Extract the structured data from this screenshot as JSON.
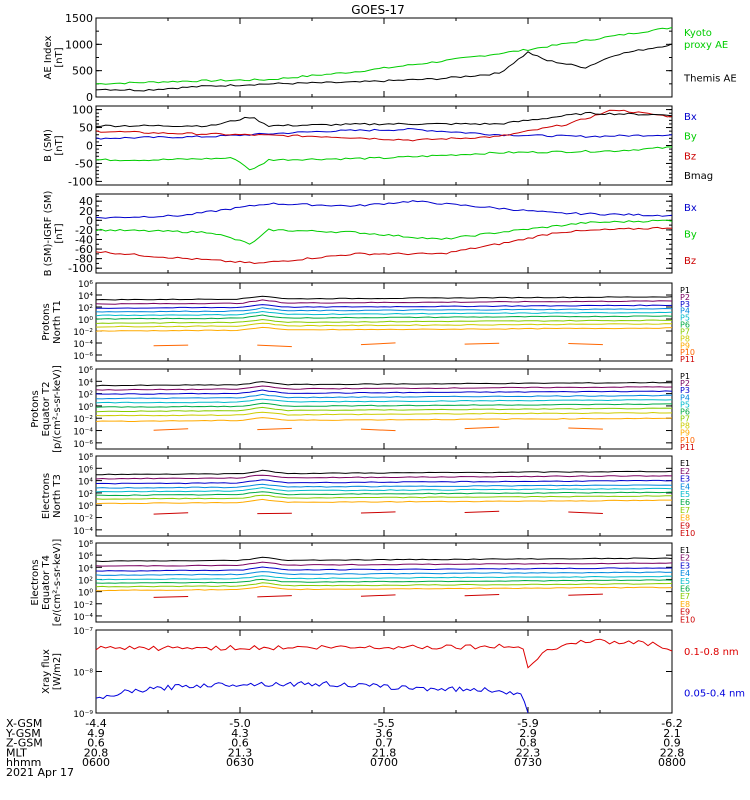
{
  "chart_data": {
    "type": "line",
    "title": "GOES-17",
    "date": "2021 Apr 17",
    "x_range": [
      "0600",
      "0800"
    ],
    "panels": [
      {
        "id": "ae",
        "ylabel": [
          "AE Index",
          "[nT]"
        ],
        "scale": "linear",
        "ylim": [
          0,
          1500
        ],
        "ticks": [
          0,
          500,
          1000,
          1500
        ],
        "tick_labels": [
          "0",
          "500",
          "1000",
          "1500"
        ],
        "minor": 2,
        "series": [
          {
            "name": "Kyoto proxy AE",
            "label": [
              "Kyoto",
              "proxy AE"
            ],
            "color": "#00cc00",
            "t": [
              0,
              0.15,
              0.3,
              0.45,
              0.6,
              0.75,
              0.9,
              1.0
            ],
            "v": [
              250,
              300,
              330,
              480,
              680,
              900,
              1160,
              1320
            ]
          },
          {
            "name": "Themis AE",
            "label": [
              "Themis AE"
            ],
            "color": "#000000",
            "t": [
              0,
              0.08,
              0.18,
              0.3,
              0.45,
              0.6,
              0.7,
              0.75,
              0.78,
              0.85,
              0.9,
              1.0
            ],
            "v": [
              150,
              130,
              200,
              250,
              280,
              350,
              450,
              850,
              700,
              560,
              800,
              1000
            ]
          }
        ]
      },
      {
        "id": "bsm",
        "ylabel": [
          "B (SM)",
          "[nT]"
        ],
        "scale": "linear",
        "ylim": [
          -110,
          110
        ],
        "ticks": [
          -100,
          -50,
          0,
          50,
          100
        ],
        "tick_labels": [
          "-100",
          "-50",
          "0",
          "50",
          "100"
        ],
        "minor": 5,
        "series": [
          {
            "name": "Bx",
            "label": [
              "Bx"
            ],
            "color": "#0000cc",
            "t": [
              0,
              0.2,
              0.4,
              0.55,
              0.7,
              0.85,
              1.0
            ],
            "v": [
              20,
              25,
              40,
              45,
              30,
              25,
              30
            ]
          },
          {
            "name": "By",
            "label": [
              "By"
            ],
            "color": "#00cc00",
            "t": [
              0,
              0.1,
              0.24,
              0.27,
              0.3,
              0.5,
              0.7,
              0.9,
              1.0
            ],
            "v": [
              -40,
              -40,
              -35,
              -70,
              -40,
              -35,
              -20,
              -15,
              -5
            ]
          },
          {
            "name": "Bz",
            "label": [
              "Bz"
            ],
            "color": "#cc0000",
            "t": [
              0,
              0.1,
              0.25,
              0.4,
              0.55,
              0.7,
              0.82,
              0.9,
              1.0
            ],
            "v": [
              40,
              35,
              30,
              25,
              15,
              25,
              60,
              100,
              80
            ]
          },
          {
            "name": "Bmag",
            "label": [
              "Bmag"
            ],
            "color": "#000000",
            "t": [
              0,
              0.2,
              0.27,
              0.3,
              0.5,
              0.7,
              0.85,
              1.0
            ],
            "v": [
              55,
              55,
              80,
              55,
              60,
              60,
              90,
              85
            ]
          }
        ]
      },
      {
        "id": "bigrf",
        "ylabel": [
          "B (SM)-IGRF (SM)",
          "[nT]"
        ],
        "scale": "linear",
        "ylim": [
          -110,
          55
        ],
        "ticks": [
          -100,
          -80,
          -60,
          -40,
          -20,
          0,
          20,
          40
        ],
        "tick_labels": [
          "-100",
          "-80",
          "-60",
          "-40",
          "-20",
          "0",
          "20",
          "40"
        ],
        "minor": 2,
        "series": [
          {
            "name": "Bx",
            "label": [
              "Bx"
            ],
            "color": "#0000cc",
            "t": [
              0,
              0.15,
              0.3,
              0.45,
              0.55,
              0.7,
              0.8,
              1.0
            ],
            "v": [
              5,
              10,
              35,
              30,
              40,
              25,
              15,
              10
            ]
          },
          {
            "name": "By",
            "label": [
              "By"
            ],
            "color": "#00cc00",
            "t": [
              0,
              0.2,
              0.27,
              0.3,
              0.45,
              0.6,
              0.7,
              0.85,
              1.0
            ],
            "v": [
              -20,
              -25,
              -50,
              -20,
              -25,
              -40,
              -25,
              -5,
              0
            ]
          },
          {
            "name": "Bz",
            "label": [
              "Bz"
            ],
            "color": "#cc0000",
            "t": [
              0,
              0.1,
              0.28,
              0.45,
              0.6,
              0.72,
              0.8,
              0.88,
              1.0
            ],
            "v": [
              -65,
              -75,
              -90,
              -70,
              -70,
              -45,
              -25,
              -20,
              -15
            ]
          }
        ]
      },
      {
        "id": "pn",
        "ylabel": [
          "Protons",
          "North T1"
        ],
        "scale": "log",
        "ylim": [
          -7,
          6
        ],
        "ticks": [
          -6,
          -4,
          -2,
          0,
          2,
          4,
          6
        ],
        "tick_labels": [
          "10⁻⁶",
          "10⁻⁴",
          "10⁻²",
          "10⁰",
          "10²",
          "10⁴",
          "10⁶"
        ],
        "channels": [
          {
            "name": "P1",
            "color": "#000000",
            "v": 3.2
          },
          {
            "name": "P2",
            "color": "#7a0060",
            "v": 2.5
          },
          {
            "name": "P3",
            "color": "#0000cc",
            "v": 1.8
          },
          {
            "name": "P4",
            "color": "#0088dd",
            "v": 1.2
          },
          {
            "name": "P5",
            "color": "#00bbcc",
            "v": 0.6
          },
          {
            "name": "P6",
            "color": "#00aa44",
            "v": 0.0
          },
          {
            "name": "P7",
            "color": "#88cc00",
            "v": -0.7
          },
          {
            "name": "P8",
            "color": "#cccc00",
            "v": -1.3
          },
          {
            "name": "P9",
            "color": "#ffaa00",
            "v": -2.0
          },
          {
            "name": "P10",
            "color": "#ff6600",
            "v": -4.5
          },
          {
            "name": "P11",
            "color": "#cc0000",
            "v": null
          }
        ]
      },
      {
        "id": "pe",
        "ylabel": [
          "Protons",
          "Equator T2",
          "[p/(cm²-s-sr-keV)]"
        ],
        "scale": "log",
        "ylim": [
          -7,
          6
        ],
        "ticks": [
          -6,
          -4,
          -2,
          0,
          2,
          4,
          6
        ],
        "tick_labels": [
          "10⁻⁶",
          "10⁻⁴",
          "10⁻²",
          "10⁰",
          "10²",
          "10⁴",
          "10⁶"
        ],
        "channels": [
          {
            "name": "P1",
            "color": "#000000",
            "v": 3.3
          },
          {
            "name": "P2",
            "color": "#7a0060",
            "v": 2.6
          },
          {
            "name": "P3",
            "color": "#0000cc",
            "v": 1.9
          },
          {
            "name": "P4",
            "color": "#0088dd",
            "v": 1.2
          },
          {
            "name": "P5",
            "color": "#00bbcc",
            "v": 0.5
          },
          {
            "name": "P6",
            "color": "#00aa44",
            "v": -0.2
          },
          {
            "name": "P7",
            "color": "#88cc00",
            "v": -0.9
          },
          {
            "name": "P8",
            "color": "#cccc00",
            "v": -1.6
          },
          {
            "name": "P9",
            "color": "#ffaa00",
            "v": -2.5
          },
          {
            "name": "P10",
            "color": "#ff6600",
            "v": -4.0
          },
          {
            "name": "P11",
            "color": "#cc0000",
            "v": null
          }
        ]
      },
      {
        "id": "en",
        "ylabel": [
          "Electrons",
          "North T3"
        ],
        "scale": "log",
        "ylim": [
          -5,
          8
        ],
        "ticks": [
          -4,
          -2,
          0,
          2,
          4,
          6,
          8
        ],
        "tick_labels": [
          "10⁻⁴",
          "10⁻²",
          "10⁰",
          "10²",
          "10⁴",
          "10⁶",
          "10⁸"
        ],
        "channels": [
          {
            "name": "E1",
            "color": "#000000",
            "v": 5.0
          },
          {
            "name": "E2",
            "color": "#7a0060",
            "v": 4.3
          },
          {
            "name": "E3",
            "color": "#0000cc",
            "v": 3.5
          },
          {
            "name": "E4",
            "color": "#0088dd",
            "v": 2.8
          },
          {
            "name": "E5",
            "color": "#00bbcc",
            "v": 2.2
          },
          {
            "name": "E6",
            "color": "#00aa44",
            "v": 1.6
          },
          {
            "name": "E7",
            "color": "#88cc00",
            "v": 1.0
          },
          {
            "name": "E8",
            "color": "#ffaa00",
            "v": 0.3
          },
          {
            "name": "E9",
            "color": "#cc0000",
            "v": -1.5
          },
          {
            "name": "E10",
            "color": "#cc0000",
            "v": null
          }
        ]
      },
      {
        "id": "ee",
        "ylabel": [
          "Electrons",
          "Equator T4",
          "[e/(cm²-s-sr-keV)]"
        ],
        "scale": "log",
        "ylim": [
          -5,
          8
        ],
        "ticks": [
          -4,
          -2,
          0,
          2,
          4,
          6,
          8
        ],
        "tick_labels": [
          "10⁻⁴",
          "10⁻²",
          "10⁰",
          "10²",
          "10⁴",
          "10⁶",
          "10⁸"
        ],
        "channels": [
          {
            "name": "E1",
            "color": "#000000",
            "v": 5.0
          },
          {
            "name": "E2",
            "color": "#7a0060",
            "v": 4.2
          },
          {
            "name": "E3",
            "color": "#0000cc",
            "v": 3.4
          },
          {
            "name": "E4",
            "color": "#0088dd",
            "v": 2.7
          },
          {
            "name": "E5",
            "color": "#00bbcc",
            "v": 2.0
          },
          {
            "name": "E6",
            "color": "#00aa44",
            "v": 1.4
          },
          {
            "name": "E7",
            "color": "#88cc00",
            "v": 0.8
          },
          {
            "name": "E8",
            "color": "#ffaa00",
            "v": 0.2
          },
          {
            "name": "E9",
            "color": "#cc0000",
            "v": -1.0
          },
          {
            "name": "E10",
            "color": "#cc0000",
            "v": null
          }
        ]
      },
      {
        "id": "xray",
        "ylabel": [
          "Xray flux",
          "[W/m2]"
        ],
        "scale": "log",
        "ylim": [
          -9,
          -7
        ],
        "ticks": [
          -9,
          -8,
          -7
        ],
        "tick_labels": [
          "10⁻⁹",
          "10⁻⁸",
          "10⁻⁷"
        ],
        "series": [
          {
            "name": "0.1-0.8 nm",
            "label": [
              "0.1-0.8 nm"
            ],
            "color": "#dd0000",
            "t": [
              0,
              0.2,
              0.4,
              0.6,
              0.74,
              0.75,
              0.78,
              0.85,
              0.9,
              0.95,
              1.0
            ],
            "v": [
              -7.45,
              -7.43,
              -7.42,
              -7.4,
              -7.4,
              -7.85,
              -7.5,
              -7.25,
              -7.3,
              -7.3,
              -7.45
            ]
          },
          {
            "name": "0.05-0.4 nm",
            "label": [
              "0.05-0.4 nm"
            ],
            "color": "#0000dd",
            "t": [
              0,
              0.05,
              0.15,
              0.25,
              0.4,
              0.55,
              0.7,
              0.74,
              0.75
            ],
            "v": [
              -8.7,
              -8.5,
              -8.35,
              -8.3,
              -8.3,
              -8.4,
              -8.45,
              -8.6,
              -9.0
            ]
          }
        ]
      }
    ],
    "xticks": [
      {
        "xgsm": "-4.4",
        "ygsm": "4.9",
        "zgsm": "0.6",
        "mlt": "20.8",
        "hhmm": "0600"
      },
      {
        "xgsm": "-5.0",
        "ygsm": "4.3",
        "zgsm": "0.6",
        "mlt": "21.3",
        "hhmm": "0630"
      },
      {
        "xgsm": "-5.5",
        "ygsm": "3.6",
        "zgsm": "0.7",
        "mlt": "21.8",
        "hhmm": "0700"
      },
      {
        "xgsm": "-5.9",
        "ygsm": "2.9",
        "zgsm": "0.8",
        "mlt": "22.3",
        "hhmm": "0730"
      },
      {
        "xgsm": "-6.2",
        "ygsm": "2.1",
        "zgsm": "0.9",
        "mlt": "22.8",
        "hhmm": "0800"
      }
    ],
    "row_labels": {
      "xgsm": "X-GSM",
      "ygsm": "Y-GSM",
      "zgsm": "Z-GSM",
      "mlt": "MLT",
      "hhmm": "hhmm"
    }
  }
}
